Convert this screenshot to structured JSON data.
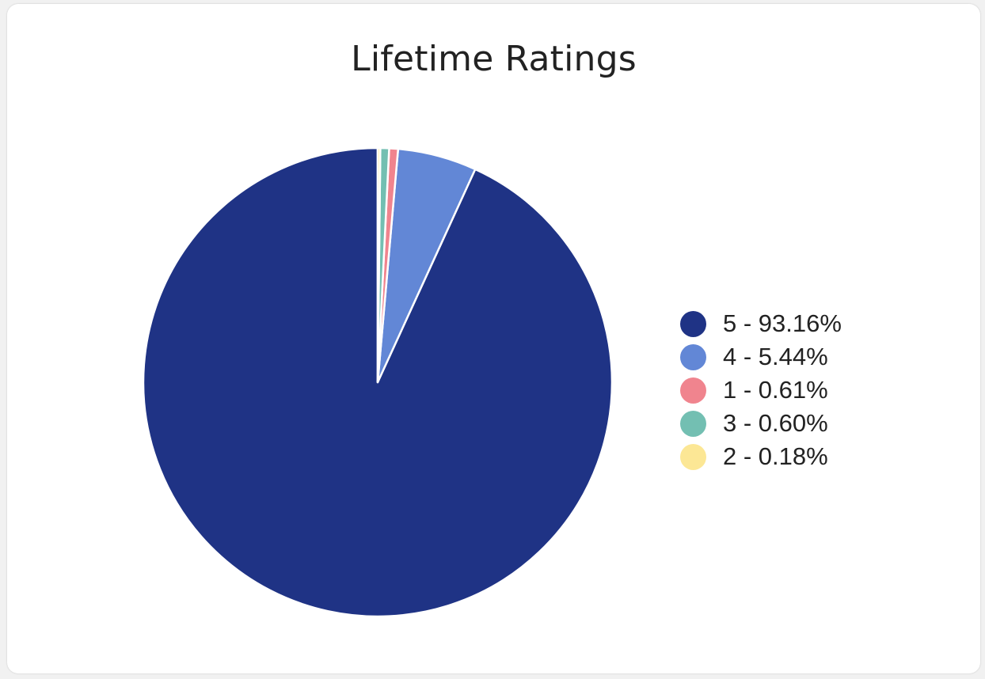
{
  "chart_data": {
    "type": "pie",
    "title": "Lifetime Ratings",
    "slices": [
      {
        "label": "5",
        "value": 93.16,
        "color": "#1f3385"
      },
      {
        "label": "4",
        "value": 5.44,
        "color": "#6287d6"
      },
      {
        "label": "1",
        "value": 0.61,
        "color": "#f0848e"
      },
      {
        "label": "3",
        "value": 0.6,
        "color": "#73bfb2"
      },
      {
        "label": "2",
        "value": 0.18,
        "color": "#fce795"
      }
    ],
    "legend": {
      "placement": "right",
      "items": [
        "5 - 93.16%",
        "4 - 5.44%",
        "1 - 0.61%",
        "3 - 0.60%",
        "2 - 0.18%"
      ]
    }
  }
}
